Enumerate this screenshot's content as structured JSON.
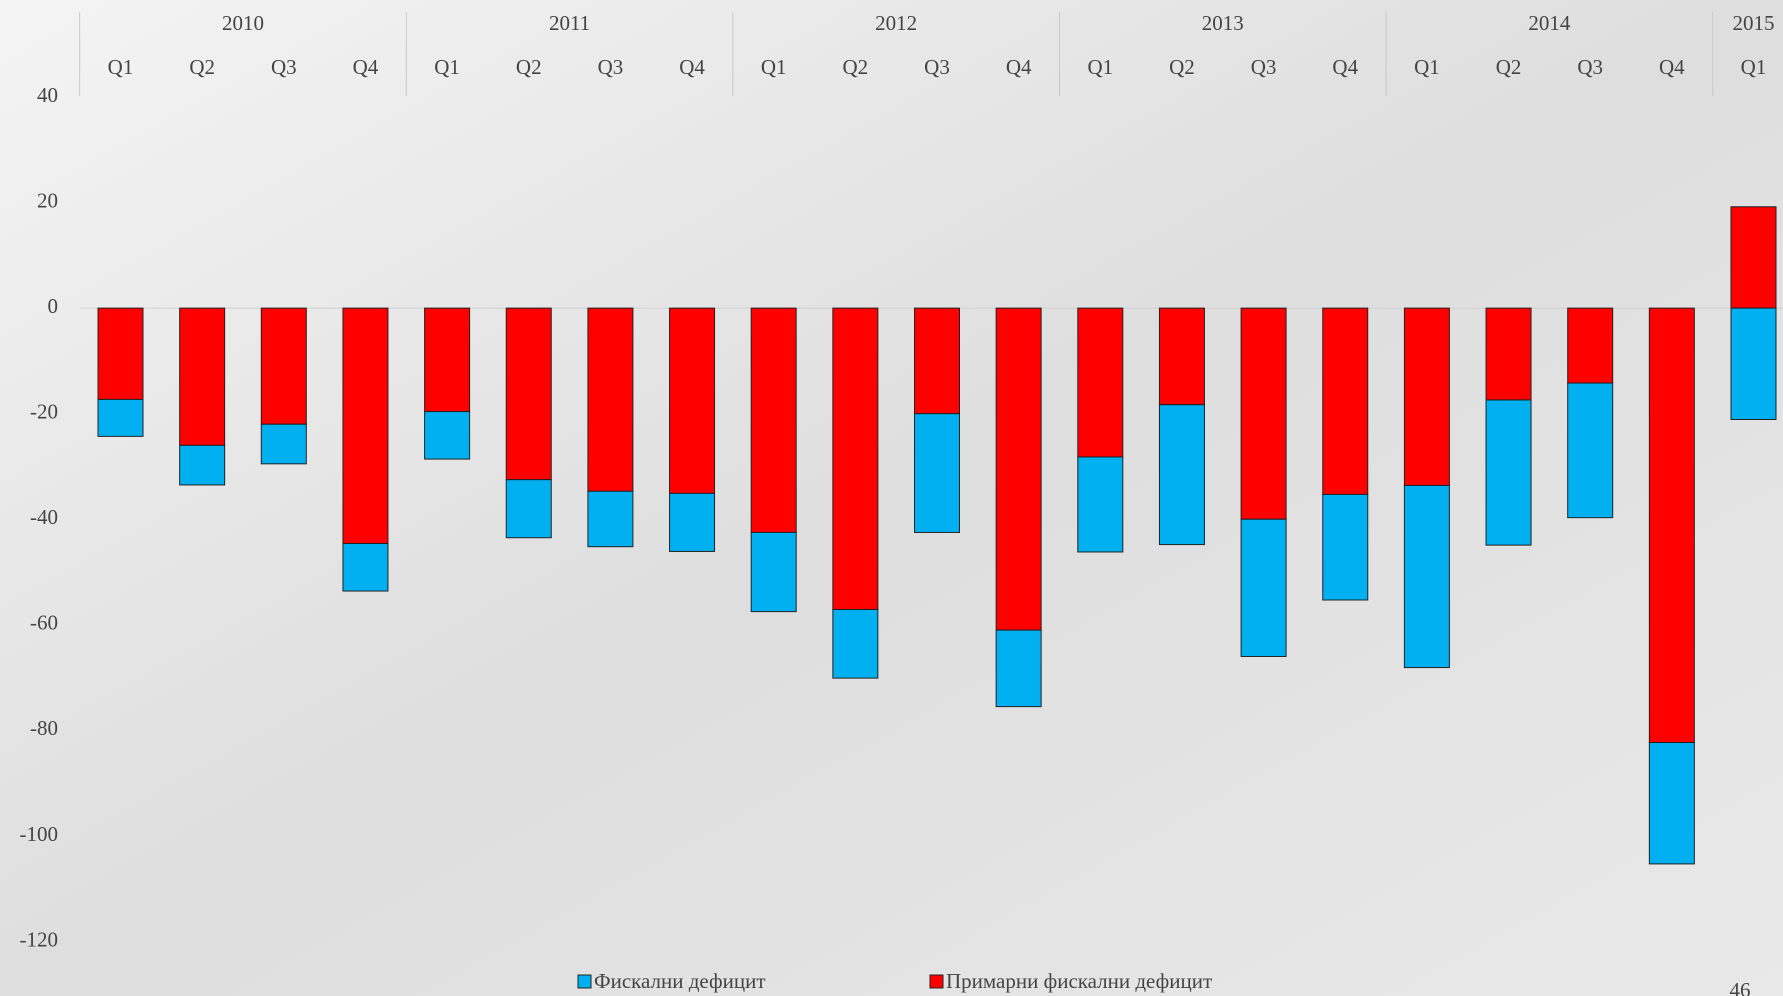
{
  "chart_data": {
    "type": "stacked-bar",
    "categories": [
      "Q1",
      "Q2",
      "Q3",
      "Q4",
      "Q1",
      "Q2",
      "Q3",
      "Q4",
      "Q1",
      "Q2",
      "Q3",
      "Q4",
      "Q1",
      "Q2",
      "Q3",
      "Q4",
      "Q1",
      "Q2",
      "Q3",
      "Q4",
      "Q1"
    ],
    "year_labels": [
      "2010",
      null,
      null,
      null,
      "2011",
      null,
      null,
      null,
      "2012",
      null,
      null,
      null,
      "2013",
      null,
      null,
      null,
      "2014",
      null,
      null,
      null,
      "2015"
    ],
    "series": [
      {
        "name": "Фискални дефицит",
        "color": "#00b0f0",
        "values": [
          -7,
          -7.5,
          -7.5,
          -9,
          -9,
          -11,
          -10.5,
          -11,
          -15,
          -13,
          -22.5,
          -14.5,
          -18,
          -26.5,
          -26,
          -20,
          -34.5,
          -27.5,
          -25.5,
          -23,
          -21.1
        ]
      },
      {
        "name": "Примарни фискални дефицит",
        "color": "#ff0000",
        "values": [
          -17.3,
          -26,
          -22,
          -44.6,
          -19.6,
          -32.5,
          -34.7,
          -35.1,
          -42.5,
          -57.1,
          -20,
          -61,
          -28.2,
          -18.3,
          -40,
          -35.3,
          -33.6,
          -17.4,
          -14.2,
          -82.3,
          19.2
        ]
      }
    ],
    "ylim": [
      -120,
      40
    ],
    "yticks": [
      40,
      20,
      0,
      -20,
      -40,
      -60,
      -80,
      -100,
      -120
    ]
  },
  "page_number": "46"
}
